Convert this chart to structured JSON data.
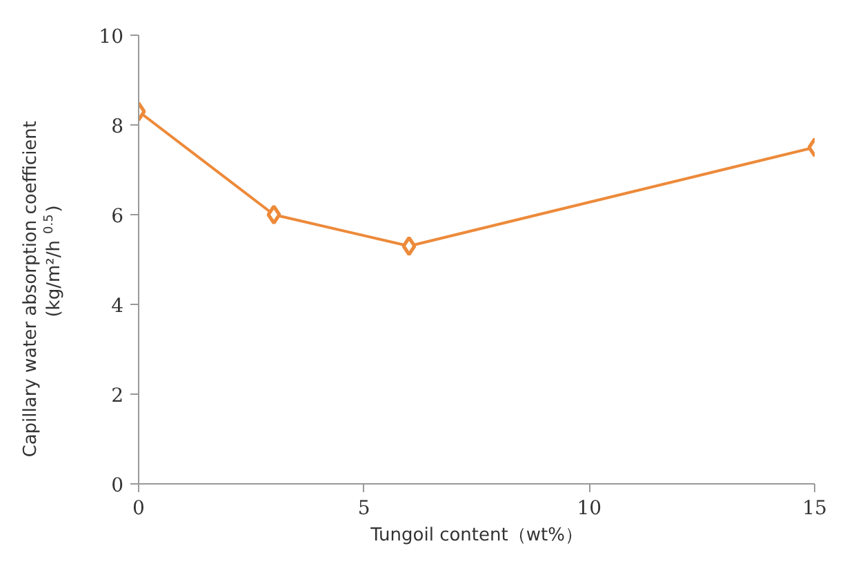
{
  "chart_data": {
    "type": "line",
    "xlabel": "Tungoil content（wt%）",
    "ylabel": "Capillary water absorption coefficient\n(kg/m²/h$^{0.5}$)",
    "x": [
      0,
      3,
      6,
      15
    ],
    "series": [
      {
        "color": "#ed8a3a",
        "values": [
          8.3,
          6.0,
          5.3,
          7.5
        ]
      }
    ],
    "xlim": [
      0,
      15
    ],
    "xticks": [
      0,
      5,
      10,
      15
    ],
    "ylim": [
      0,
      10
    ],
    "yticks": [
      0,
      2,
      4,
      6,
      8,
      10
    ],
    "marker": "diamond",
    "line_style": "solid"
  }
}
